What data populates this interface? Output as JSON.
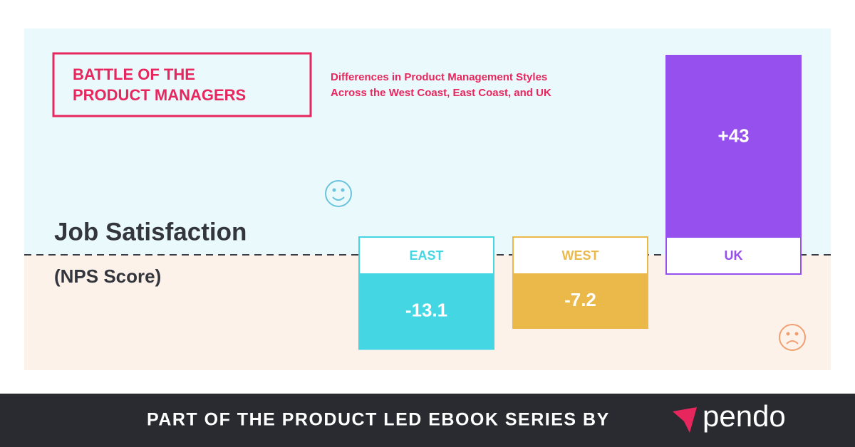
{
  "chart_data": {
    "type": "bar",
    "title": [
      "BATTLE OF THE",
      "PRODUCT MANAGERS"
    ],
    "subtitle": [
      "Differences in Product Management Styles",
      "Across the West Coast, East Coast, and UK"
    ],
    "y_label": "Job Satisfaction",
    "y_sublabel": "(NPS Score)",
    "categories": [
      "EAST",
      "WEST",
      "UK"
    ],
    "values": [
      -13.1,
      -7.2,
      43
    ],
    "value_labels": [
      "-13.1",
      "-7.2",
      "+43"
    ],
    "colors": [
      "#45d6e4",
      "#ebb84a",
      "#9650ee"
    ]
  },
  "footer": {
    "text": "PART OF THE PRODUCT LED EBOOK SERIES BY",
    "brand": "pendo"
  }
}
